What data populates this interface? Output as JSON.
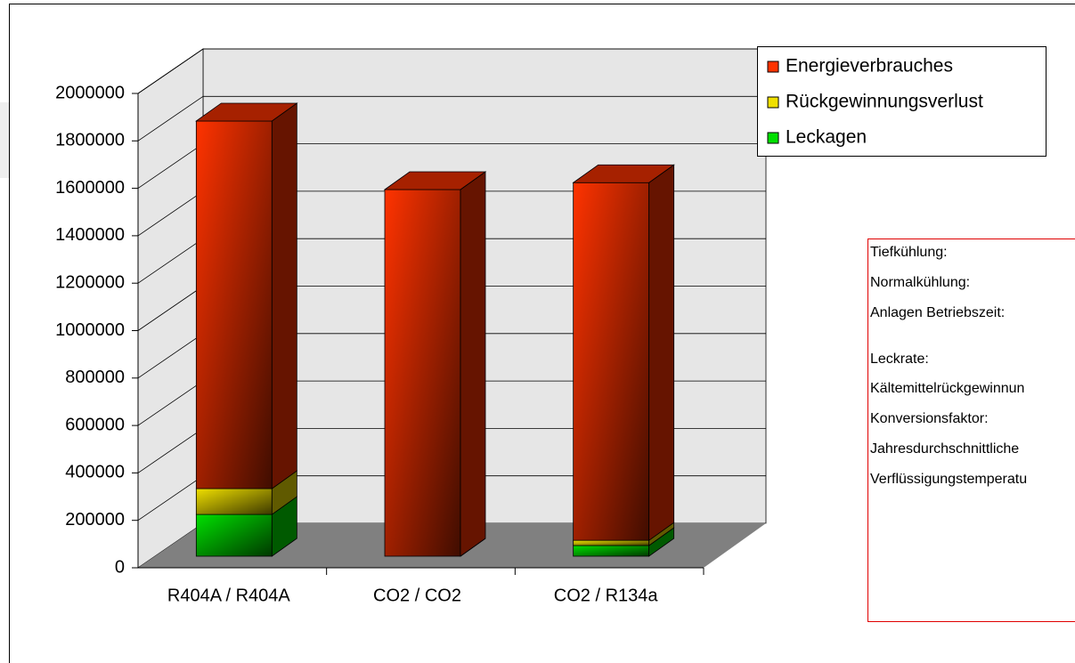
{
  "chart_data": {
    "type": "bar3d_stacked",
    "categories": [
      "R404A / R404A",
      "CO2 / CO2",
      "CO2 / R134a"
    ],
    "series": [
      {
        "name": "Leckagen",
        "color": "#00e000",
        "values": [
          176000,
          0,
          45000
        ]
      },
      {
        "name": "Rückgewinnungsverlust",
        "color": "#f0e000",
        "values": [
          109000,
          0,
          22000
        ]
      },
      {
        "name": "Energieverbrauches",
        "color": "#ff3300",
        "values": [
          1550000,
          1546000,
          1508000
        ]
      }
    ],
    "ylim": [
      0,
      2000000
    ],
    "yticks": [
      0,
      200000,
      400000,
      600000,
      800000,
      1000000,
      1200000,
      1400000,
      1600000,
      1800000,
      2000000
    ],
    "grid": true,
    "legend": "top-right",
    "info_box": [
      "Tiefkühlung:",
      "Normalkühlung:",
      "Anlagen Betriebszeit:",
      "Leckrate:",
      "Kältemittelrückgewinnun",
      "Konversionsfaktor:",
      "Jahresdurchschnittliche",
      "Verflüssigungstemperatu"
    ]
  }
}
